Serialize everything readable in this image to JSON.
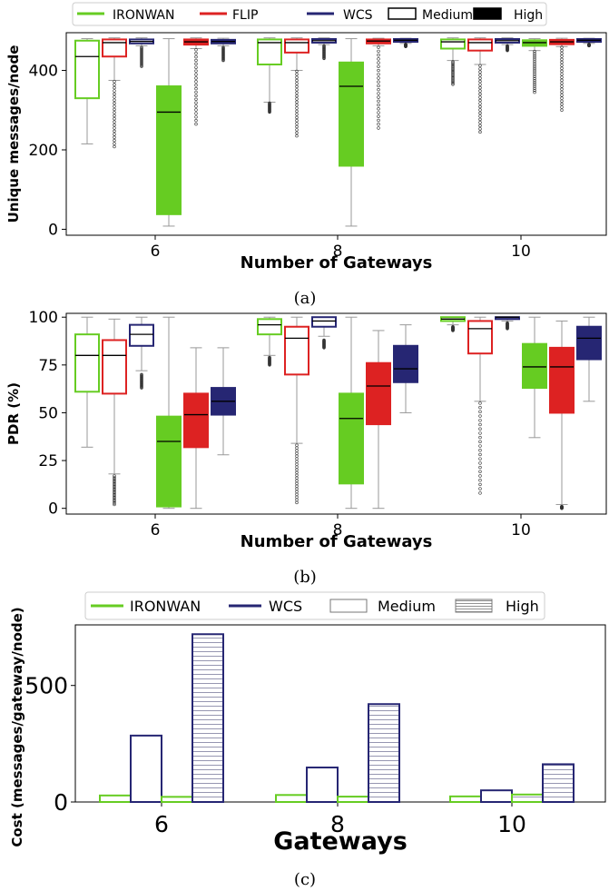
{
  "colors": {
    "IRONWAN": "#66cc22",
    "FLIP": "#dd2222",
    "WCS": "#262673",
    "black": "#000000"
  },
  "chart_data": [
    {
      "id": "a",
      "type": "boxplot",
      "caption": "(a)",
      "xlabel": "Number of Gateways",
      "ylabel": "Unique messages/node",
      "categories": [
        "6",
        "8",
        "10"
      ],
      "ylim": [
        -15,
        495
      ],
      "yticks": [
        0,
        200,
        400
      ],
      "legend": {
        "position": "top",
        "entries": [
          {
            "label": "IRONWAN",
            "kind": "line",
            "series": "IRONWAN"
          },
          {
            "label": "FLIP",
            "kind": "line",
            "series": "FLIP"
          },
          {
            "label": "WCS",
            "kind": "line",
            "series": "WCS"
          },
          {
            "label": "Medium",
            "kind": "hollow"
          },
          {
            "label": "High",
            "kind": "solid"
          }
        ]
      },
      "series_order": [
        "IRONWAN-Medium",
        "FLIP-Medium",
        "WCS-Medium",
        "IRONWAN-High",
        "FLIP-High",
        "WCS-High"
      ],
      "boxes": {
        "6": [
          {
            "series": "IRONWAN",
            "level": "Medium",
            "whislo": 215,
            "q1": 330,
            "med": 435,
            "q3": 475,
            "whishi": 480,
            "outliers": []
          },
          {
            "series": "FLIP",
            "level": "Medium",
            "whislo": 375,
            "q1": 435,
            "med": 470,
            "q3": 478,
            "whishi": 482,
            "outliers_range": [
              208,
              372
            ]
          },
          {
            "series": "WCS",
            "level": "Medium",
            "whislo": 462,
            "q1": 468,
            "med": 473,
            "q3": 478,
            "whishi": 482,
            "outliers_range": [
              410,
              458
            ]
          },
          {
            "series": "IRONWAN",
            "level": "High",
            "whislo": 8,
            "q1": 38,
            "med": 295,
            "q3": 360,
            "whishi": 480,
            "outliers": []
          },
          {
            "series": "FLIP",
            "level": "High",
            "whislo": 455,
            "q1": 465,
            "med": 472,
            "q3": 478,
            "whishi": 482,
            "outliers_range": [
              265,
              452
            ]
          },
          {
            "series": "WCS",
            "level": "High",
            "whislo": 462,
            "q1": 468,
            "med": 473,
            "q3": 477,
            "whishi": 481,
            "outliers_range": [
              425,
              458
            ]
          }
        ],
        "8": [
          {
            "series": "IRONWAN",
            "level": "Medium",
            "whislo": 320,
            "q1": 415,
            "med": 470,
            "q3": 478,
            "whishi": 482,
            "outliers_range": [
              295,
              318
            ]
          },
          {
            "series": "FLIP",
            "level": "Medium",
            "whislo": 400,
            "q1": 445,
            "med": 470,
            "q3": 478,
            "whishi": 482,
            "outliers_range": [
              235,
              398
            ]
          },
          {
            "series": "WCS",
            "level": "Medium",
            "whislo": 465,
            "q1": 470,
            "med": 475,
            "q3": 479,
            "whishi": 482,
            "outliers_range": [
              430,
              462
            ]
          },
          {
            "series": "IRONWAN",
            "level": "High",
            "whislo": 8,
            "q1": 160,
            "med": 360,
            "q3": 420,
            "whishi": 480,
            "outliers": []
          },
          {
            "series": "FLIP",
            "level": "High",
            "whislo": 462,
            "q1": 468,
            "med": 474,
            "q3": 478,
            "whishi": 481,
            "outliers_range": [
              255,
              458
            ]
          },
          {
            "series": "WCS",
            "level": "High",
            "whislo": 468,
            "q1": 472,
            "med": 476,
            "q3": 479,
            "whishi": 481,
            "outliers_range": [
              460,
              466
            ]
          }
        ],
        "10": [
          {
            "series": "IRONWAN",
            "level": "Medium",
            "whislo": 425,
            "q1": 455,
            "med": 472,
            "q3": 478,
            "whishi": 482,
            "outliers_range": [
              365,
              422
            ]
          },
          {
            "series": "FLIP",
            "level": "Medium",
            "whislo": 415,
            "q1": 450,
            "med": 470,
            "q3": 478,
            "whishi": 482,
            "outliers_range": [
              245,
              412
            ]
          },
          {
            "series": "WCS",
            "level": "Medium",
            "whislo": 465,
            "q1": 470,
            "med": 475,
            "q3": 479,
            "whishi": 482,
            "outliers_range": [
              450,
              462
            ]
          },
          {
            "series": "IRONWAN",
            "level": "High",
            "whislo": 450,
            "q1": 462,
            "med": 470,
            "q3": 476,
            "whishi": 480,
            "outliers_range": [
              345,
              448
            ]
          },
          {
            "series": "FLIP",
            "level": "High",
            "whislo": 460,
            "q1": 466,
            "med": 472,
            "q3": 477,
            "whishi": 481,
            "outliers_range": [
              300,
              458
            ]
          },
          {
            "series": "WCS",
            "level": "High",
            "whislo": 468,
            "q1": 472,
            "med": 476,
            "q3": 479,
            "whishi": 481,
            "outliers_range": [
              462,
              466
            ]
          }
        ]
      }
    },
    {
      "id": "b",
      "type": "boxplot",
      "caption": "(b)",
      "xlabel": "Number of Gateways",
      "ylabel": "PDR (%)",
      "categories": [
        "6",
        "8",
        "10"
      ],
      "ylim": [
        -3,
        102
      ],
      "yticks": [
        0,
        25,
        50,
        75,
        100
      ],
      "series_order": [
        "IRONWAN-Medium",
        "FLIP-Medium",
        "WCS-Medium",
        "IRONWAN-High",
        "FLIP-High",
        "WCS-High"
      ],
      "boxes": {
        "6": [
          {
            "series": "IRONWAN",
            "level": "Medium",
            "whislo": 32,
            "q1": 61,
            "med": 80,
            "q3": 91,
            "whishi": 100,
            "outliers": []
          },
          {
            "series": "FLIP",
            "level": "Medium",
            "whislo": 18,
            "q1": 60,
            "med": 80,
            "q3": 88,
            "whishi": 99,
            "outliers_range": [
              2,
              17
            ]
          },
          {
            "series": "WCS",
            "level": "Medium",
            "whislo": 72,
            "q1": 85,
            "med": 91,
            "q3": 96,
            "whishi": 100,
            "outliers_range": [
              63,
              70
            ]
          },
          {
            "series": "IRONWAN",
            "level": "High",
            "whislo": 0,
            "q1": 1,
            "med": 35,
            "q3": 48,
            "whishi": 100,
            "outliers": []
          },
          {
            "series": "FLIP",
            "level": "High",
            "whislo": 0,
            "q1": 32,
            "med": 49,
            "q3": 60,
            "whishi": 84,
            "outliers": []
          },
          {
            "series": "WCS",
            "level": "High",
            "whislo": 28,
            "q1": 49,
            "med": 56,
            "q3": 63,
            "whishi": 84,
            "outliers": []
          }
        ],
        "8": [
          {
            "series": "IRONWAN",
            "level": "Medium",
            "whislo": 80,
            "q1": 91,
            "med": 96,
            "q3": 99,
            "whishi": 100,
            "outliers_range": [
              75,
              79
            ]
          },
          {
            "series": "FLIP",
            "level": "Medium",
            "whislo": 34,
            "q1": 70,
            "med": 89,
            "q3": 95,
            "whishi": 100,
            "outliers_range": [
              3,
              33
            ]
          },
          {
            "series": "WCS",
            "level": "Medium",
            "whislo": 90,
            "q1": 95,
            "med": 98,
            "q3": 100,
            "whishi": 100,
            "outliers_range": [
              84,
              88
            ]
          },
          {
            "series": "IRONWAN",
            "level": "High",
            "whislo": 0,
            "q1": 13,
            "med": 47,
            "q3": 60,
            "whishi": 100,
            "outliers": []
          },
          {
            "series": "FLIP",
            "level": "High",
            "whislo": 0,
            "q1": 44,
            "med": 64,
            "q3": 76,
            "whishi": 93,
            "outliers": []
          },
          {
            "series": "WCS",
            "level": "High",
            "whislo": 50,
            "q1": 66,
            "med": 73,
            "q3": 85,
            "whishi": 96,
            "outliers": []
          }
        ],
        "10": [
          {
            "series": "IRONWAN",
            "level": "Medium",
            "whislo": 96,
            "q1": 98,
            "med": 99,
            "q3": 100,
            "whishi": 100,
            "outliers_range": [
              93,
              95
            ]
          },
          {
            "series": "FLIP",
            "level": "Medium",
            "whislo": 56,
            "q1": 81,
            "med": 94,
            "q3": 98,
            "whishi": 100,
            "outliers_range": [
              8,
              55
            ]
          },
          {
            "series": "WCS",
            "level": "Medium",
            "whislo": 98,
            "q1": 99,
            "med": 100,
            "q3": 100,
            "whishi": 100,
            "outliers_range": [
              94,
              97
            ]
          },
          {
            "series": "IRONWAN",
            "level": "High",
            "whislo": 37,
            "q1": 63,
            "med": 74,
            "q3": 86,
            "whishi": 100,
            "outliers": []
          },
          {
            "series": "FLIP",
            "level": "High",
            "whislo": 2,
            "q1": 50,
            "med": 74,
            "q3": 84,
            "whishi": 98,
            "outliers_range": [
              0,
              1
            ]
          },
          {
            "series": "WCS",
            "level": "High",
            "whislo": 56,
            "q1": 78,
            "med": 89,
            "q3": 95,
            "whishi": 100,
            "outliers": []
          }
        ]
      }
    },
    {
      "id": "c",
      "type": "bar",
      "caption": "(c)",
      "xlabel": "Gateways",
      "ylabel": "Cost (messages/gateway/node)",
      "categories": [
        "6",
        "8",
        "10"
      ],
      "ylim": [
        0,
        760
      ],
      "yticks": [
        0,
        500
      ],
      "legend": {
        "position": "top",
        "entries": [
          {
            "label": "IRONWAN",
            "kind": "line",
            "series": "IRONWAN"
          },
          {
            "label": "WCS",
            "kind": "line",
            "series": "WCS"
          },
          {
            "label": "Medium",
            "kind": "hollow-gray"
          },
          {
            "label": "High",
            "kind": "hatched-gray"
          }
        ]
      },
      "series": [
        {
          "series": "IRONWAN",
          "level": "Medium",
          "values": [
            28,
            30,
            24
          ]
        },
        {
          "series": "WCS",
          "level": "Medium",
          "values": [
            285,
            148,
            50
          ]
        },
        {
          "series": "IRONWAN",
          "level": "High",
          "values": [
            22,
            23,
            32
          ]
        },
        {
          "series": "WCS",
          "level": "High",
          "values": [
            720,
            420,
            162
          ]
        }
      ]
    }
  ]
}
